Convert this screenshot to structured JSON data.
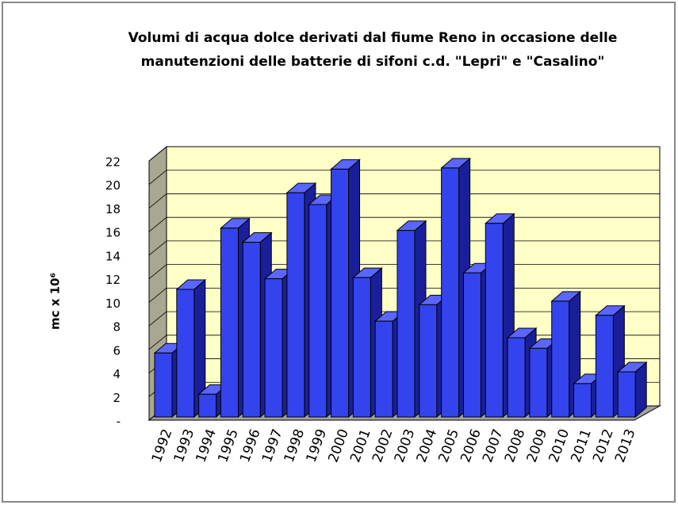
{
  "chart_data": {
    "type": "bar3d",
    "title": "Volumi di acqua dolce derivati dal fiume Reno in occasione delle",
    "subtitle": "manutenzioni delle batterie di sifoni c.d. \"Lepri\" e \"Casalino\"",
    "y_label": "mc x 10⁶",
    "categories": [
      "1992",
      "1993",
      "1994",
      "1995",
      "1996",
      "1997",
      "1998",
      "1999",
      "2000",
      "2001",
      "2002",
      "2003",
      "2004",
      "2005",
      "2006",
      "2007",
      "2008",
      "2009",
      "2010",
      "2011",
      "2012",
      "2013"
    ],
    "values": [
      5.7,
      11.1,
      2.2,
      16.3,
      15.1,
      12,
      19.3,
      18.3,
      21.3,
      12.1,
      8.4,
      16.1,
      9.8,
      21.4,
      12.5,
      16.7,
      7,
      6.1,
      10.1,
      3.1,
      8.9,
      4.1
    ],
    "color": "#3344ee",
    "ylim": [
      0,
      22
    ],
    "yticks": [
      {
        "value": 0,
        "label": "-"
      },
      2,
      4,
      6,
      8,
      10,
      12,
      14,
      16,
      18,
      20,
      22
    ],
    "grid": true
  }
}
